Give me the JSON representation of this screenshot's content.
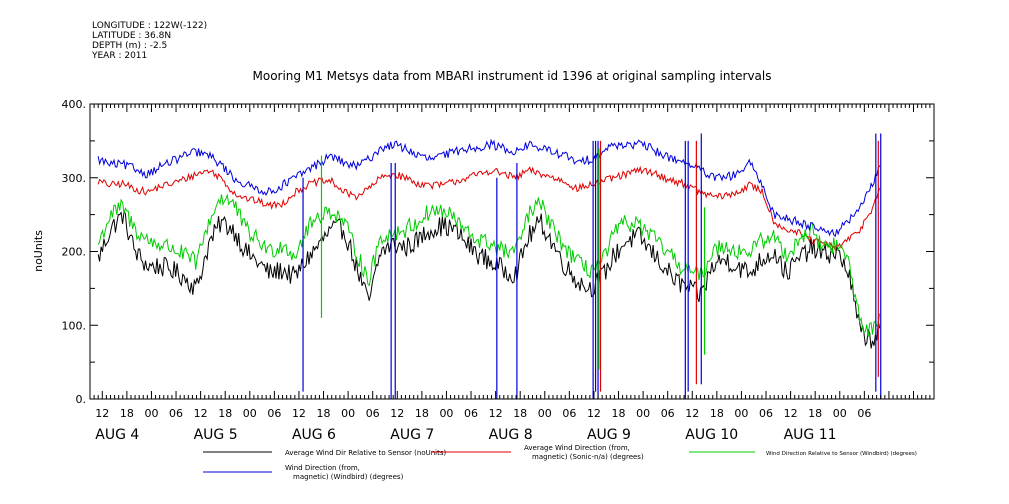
{
  "header": {
    "metadata_lines": [
      "LONGITUDE : 122W(-122)",
      "LATITUDE : 36.8N",
      "DEPTH (m) : -2.5",
      "YEAR : 2011"
    ]
  },
  "chart_data": {
    "type": "line",
    "title": "Mooring M1 Metsys data from MBARI instrument id 1396 at original sampling intervals",
    "ylabel": "noUnits",
    "ylim": [
      0,
      400
    ],
    "y_ticks": [
      0,
      100,
      200,
      300,
      400
    ],
    "x_unit": "hours since 2011-08-03 12:00",
    "xlim": [
      -3,
      203
    ],
    "x_hour_ticks": [
      {
        "x": 0,
        "label": "12"
      },
      {
        "x": 6,
        "label": "18"
      },
      {
        "x": 12,
        "label": "00"
      },
      {
        "x": 18,
        "label": "06"
      },
      {
        "x": 24,
        "label": "12"
      },
      {
        "x": 30,
        "label": "18"
      },
      {
        "x": 36,
        "label": "00"
      },
      {
        "x": 42,
        "label": "06"
      },
      {
        "x": 48,
        "label": "12"
      },
      {
        "x": 54,
        "label": "18"
      },
      {
        "x": 60,
        "label": "00"
      },
      {
        "x": 66,
        "label": "06"
      },
      {
        "x": 72,
        "label": "12"
      },
      {
        "x": 78,
        "label": "18"
      },
      {
        "x": 84,
        "label": "00"
      },
      {
        "x": 90,
        "label": "06"
      },
      {
        "x": 96,
        "label": "12"
      },
      {
        "x": 102,
        "label": "18"
      },
      {
        "x": 108,
        "label": "00"
      },
      {
        "x": 114,
        "label": "06"
      },
      {
        "x": 120,
        "label": "12"
      },
      {
        "x": 126,
        "label": "18"
      },
      {
        "x": 132,
        "label": "00"
      },
      {
        "x": 138,
        "label": "06"
      },
      {
        "x": 144,
        "label": "12"
      },
      {
        "x": 150,
        "label": "18"
      },
      {
        "x": 156,
        "label": "00"
      },
      {
        "x": 162,
        "label": "06"
      },
      {
        "x": 168,
        "label": "12"
      },
      {
        "x": 174,
        "label": "18"
      },
      {
        "x": 180,
        "label": "00"
      },
      {
        "x": 186,
        "label": "06"
      }
    ],
    "x_day_labels": [
      {
        "x": 0,
        "label": "AUG  4"
      },
      {
        "x": 24,
        "label": "AUG  5"
      },
      {
        "x": 48,
        "label": "AUG  6"
      },
      {
        "x": 72,
        "label": "AUG  7"
      },
      {
        "x": 96,
        "label": "AUG  8"
      },
      {
        "x": 120,
        "label": "AUG  9"
      },
      {
        "x": 144,
        "label": "AUG 10"
      },
      {
        "x": 168,
        "label": "AUG 11"
      }
    ],
    "grid": false,
    "legend_position": "bottom",
    "series": [
      {
        "name": "Average Wind Dir Relative to Sensor (noUnits)",
        "color": "#000000",
        "x": [
          -1,
          2,
          5,
          8,
          11,
          14,
          17,
          20,
          23,
          26,
          29,
          32,
          35,
          38,
          41,
          44,
          47,
          50,
          53,
          56,
          59,
          62,
          65,
          68,
          71,
          74,
          77,
          80,
          83,
          86,
          89,
          92,
          95,
          98,
          101,
          104,
          107,
          110,
          113,
          116,
          119,
          122,
          125,
          128,
          131,
          134,
          137,
          140,
          143,
          146,
          149,
          152,
          155,
          158,
          161,
          164,
          167,
          170,
          173,
          176,
          179,
          182,
          185,
          188,
          190
        ],
        "values": [
          190,
          230,
          250,
          200,
          180,
          180,
          175,
          165,
          150,
          210,
          240,
          230,
          200,
          185,
          170,
          175,
          165,
          190,
          210,
          230,
          230,
          180,
          130,
          200,
          210,
          205,
          215,
          230,
          235,
          230,
          210,
          195,
          185,
          175,
          170,
          220,
          240,
          210,
          180,
          160,
          150,
          165,
          195,
          215,
          220,
          200,
          180,
          160,
          150,
          140,
          180,
          190,
          180,
          170,
          190,
          200,
          170,
          190,
          205,
          195,
          200,
          175,
          90,
          80,
          100
        ]
      },
      {
        "name": "Average Wind Direction (from, magnetic) (Sonic-n/a) (degrees)",
        "color": "#e00000",
        "x": [
          -1,
          2,
          5,
          8,
          11,
          14,
          17,
          20,
          23,
          26,
          29,
          32,
          35,
          38,
          41,
          44,
          47,
          50,
          53,
          56,
          59,
          62,
          65,
          68,
          71,
          74,
          77,
          80,
          83,
          86,
          89,
          92,
          95,
          98,
          101,
          104,
          107,
          110,
          113,
          116,
          119,
          122,
          125,
          128,
          131,
          134,
          137,
          140,
          143,
          146,
          149,
          152,
          155,
          158,
          161,
          164,
          167,
          170,
          173,
          176,
          179,
          182,
          185,
          188,
          190
        ],
        "values": [
          295,
          290,
          292,
          285,
          280,
          288,
          292,
          298,
          305,
          310,
          300,
          280,
          272,
          268,
          262,
          265,
          280,
          290,
          295,
          295,
          280,
          275,
          285,
          300,
          305,
          300,
          292,
          290,
          290,
          295,
          300,
          305,
          310,
          305,
          300,
          310,
          305,
          300,
          295,
          285,
          290,
          295,
          300,
          305,
          310,
          308,
          300,
          295,
          290,
          280,
          275,
          275,
          280,
          290,
          282,
          240,
          230,
          225,
          215,
          210,
          205,
          215,
          230,
          260,
          290
        ]
      },
      {
        "name": "Wind Direction Relative to Sensor (Windbird) (degrees)",
        "color": "#00cc00",
        "x": [
          -1,
          2,
          5,
          8,
          11,
          14,
          17,
          20,
          23,
          26,
          29,
          32,
          35,
          38,
          41,
          44,
          47,
          50,
          53,
          56,
          59,
          62,
          65,
          68,
          71,
          74,
          77,
          80,
          83,
          86,
          89,
          92,
          95,
          98,
          101,
          104,
          107,
          110,
          113,
          116,
          119,
          122,
          125,
          128,
          131,
          134,
          137,
          140,
          143,
          146,
          149,
          152,
          155,
          158,
          161,
          164,
          167,
          170,
          173,
          176,
          179,
          182,
          185,
          188,
          190
        ],
        "values": [
          210,
          250,
          260,
          230,
          215,
          210,
          205,
          195,
          185,
          240,
          275,
          265,
          230,
          215,
          200,
          210,
          195,
          230,
          250,
          255,
          240,
          200,
          160,
          220,
          225,
          230,
          240,
          255,
          255,
          245,
          225,
          215,
          210,
          200,
          200,
          250,
          265,
          230,
          205,
          185,
          175,
          185,
          225,
          240,
          235,
          220,
          205,
          185,
          175,
          165,
          200,
          210,
          200,
          200,
          215,
          220,
          195,
          215,
          230,
          205,
          210,
          190,
          105,
          90,
          120
        ]
      },
      {
        "name": "Wind Direction (from, magnetic) (Windbird) (degrees)",
        "color": "#0000dd",
        "x": [
          -1,
          2,
          5,
          8,
          11,
          14,
          17,
          20,
          23,
          26,
          29,
          32,
          35,
          38,
          41,
          44,
          47,
          50,
          53,
          56,
          59,
          62,
          65,
          68,
          71,
          74,
          77,
          80,
          83,
          86,
          89,
          92,
          95,
          98,
          101,
          104,
          107,
          110,
          113,
          116,
          119,
          122,
          125,
          128,
          131,
          134,
          137,
          140,
          143,
          146,
          149,
          152,
          155,
          158,
          161,
          164,
          167,
          170,
          173,
          176,
          179,
          182,
          185,
          188,
          190
        ],
        "values": [
          325,
          318,
          318,
          312,
          305,
          315,
          322,
          330,
          335,
          330,
          318,
          300,
          290,
          285,
          280,
          290,
          300,
          310,
          320,
          330,
          320,
          315,
          325,
          340,
          345,
          340,
          330,
          325,
          330,
          335,
          340,
          342,
          345,
          340,
          335,
          345,
          340,
          335,
          330,
          320,
          325,
          335,
          345,
          345,
          345,
          340,
          330,
          325,
          320,
          310,
          300,
          300,
          305,
          320,
          290,
          250,
          245,
          240,
          235,
          230,
          225,
          240,
          260,
          290,
          320
        ]
      }
    ],
    "spikes": [
      {
        "series": 3,
        "x": 49,
        "from": 300,
        "to": 10
      },
      {
        "series": 3,
        "x": 70.5,
        "from": 320,
        "to": 0
      },
      {
        "series": 3,
        "x": 71.5,
        "from": 320,
        "to": 0
      },
      {
        "series": 3,
        "x": 96.3,
        "from": 300,
        "to": 0
      },
      {
        "series": 3,
        "x": 101.2,
        "from": 320,
        "to": 0
      },
      {
        "series": 3,
        "x": 119.8,
        "from": 350,
        "to": 0
      },
      {
        "series": 3,
        "x": 120.4,
        "from": 350,
        "to": 10
      },
      {
        "series": 3,
        "x": 121.0,
        "from": 350,
        "to": 0
      },
      {
        "series": 3,
        "x": 142.3,
        "from": 350,
        "to": 0
      },
      {
        "series": 3,
        "x": 143.0,
        "from": 350,
        "to": 10
      },
      {
        "series": 3,
        "x": 146.2,
        "from": 360,
        "to": 20
      },
      {
        "series": 3,
        "x": 188.8,
        "from": 360,
        "to": 10
      },
      {
        "series": 3,
        "x": 190.0,
        "from": 360,
        "to": 0
      },
      {
        "series": 1,
        "x": 121.6,
        "from": 350,
        "to": 10
      },
      {
        "series": 1,
        "x": 145.0,
        "from": 350,
        "to": 20
      },
      {
        "series": 1,
        "x": 189.4,
        "from": 350,
        "to": 30
      },
      {
        "series": 2,
        "x": 53.5,
        "from": 330,
        "to": 110
      },
      {
        "series": 2,
        "x": 121.2,
        "from": 340,
        "to": 40
      },
      {
        "series": 2,
        "x": 147.0,
        "from": 260,
        "to": 60
      }
    ]
  }
}
